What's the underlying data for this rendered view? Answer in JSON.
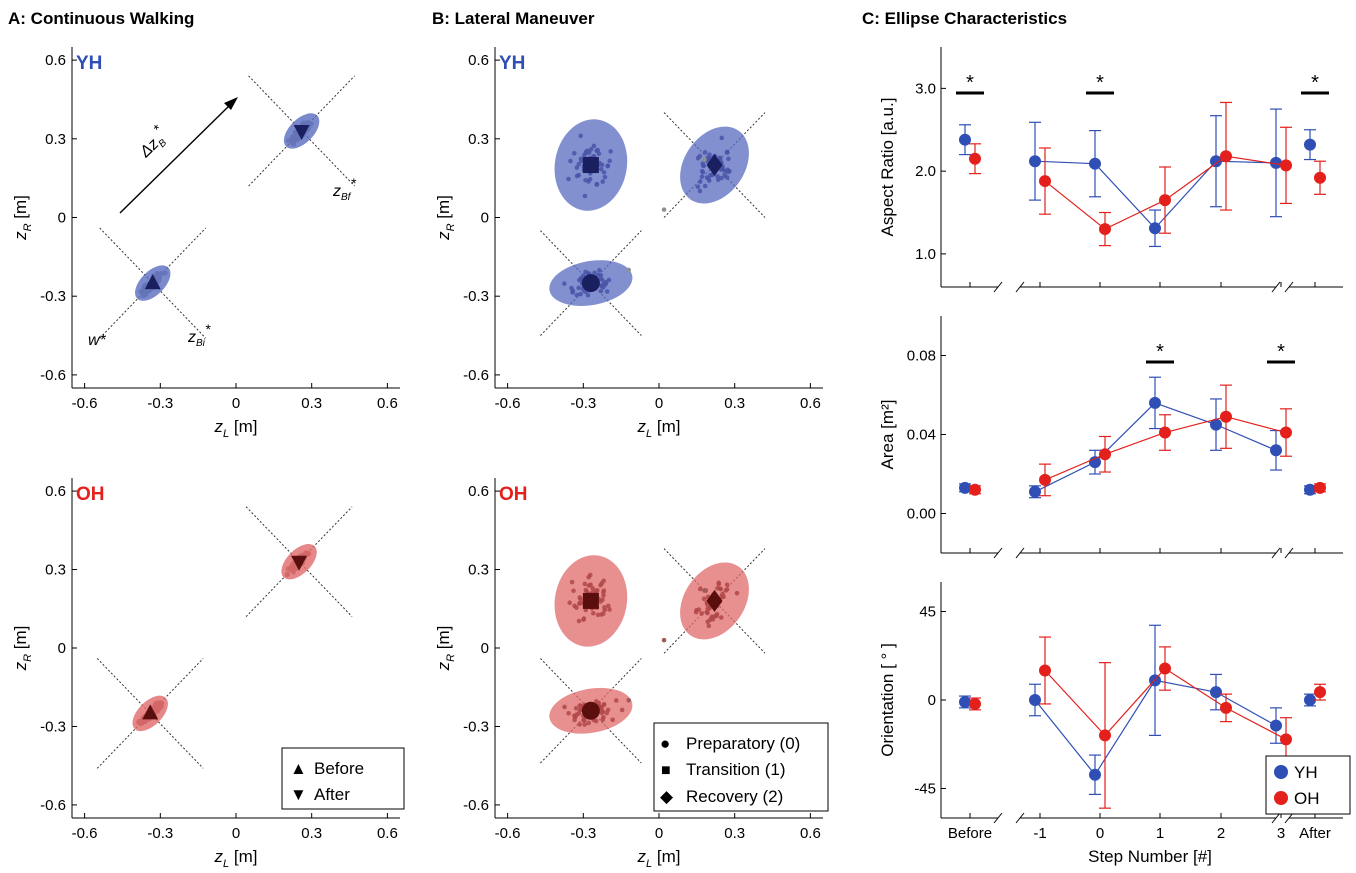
{
  "panels": {
    "a_title": "A: Continuous Walking",
    "b_title": "B: Lateral Maneuver",
    "c_title": "C: Ellipse Characteristics",
    "yh_tag": "YH",
    "oh_tag": "OH"
  },
  "colors": {
    "yh": "#2f4fb5",
    "oh": "#e3201c",
    "yh_fill": "#5a6bc0",
    "oh_fill": "#e06a6a",
    "scatter": "#909090",
    "oh_scatter": "#a05a5a"
  },
  "scatter_axes": {
    "xlabel_main": "z",
    "xlabel_sub": "L",
    "xlabel_unit": " [m]",
    "ylabel_main": "z",
    "ylabel_sub": "R",
    "ylabel_unit": " [m]",
    "ticks": [
      -0.6,
      -0.3,
      0,
      0.3,
      0.6
    ],
    "tick_labels": [
      "-0.6",
      "-0.3",
      "0",
      "0.3",
      "0.6"
    ]
  },
  "annotations": {
    "delta": "Δz",
    "delta_sub": "B",
    "w": "w*",
    "zbi": "z",
    "zbi_sub": "Bi",
    "zbf": "z",
    "zbf_sub": "Bf",
    "star": "*"
  },
  "legend_a": [
    {
      "symbol": "▲",
      "label": "Before"
    },
    {
      "symbol": "▼",
      "label": "After"
    }
  ],
  "legend_b": [
    {
      "symbol": "●",
      "label": "Preparatory (0)"
    },
    {
      "symbol": "■",
      "label": "Transition (1)"
    },
    {
      "symbol": "◆",
      "label": "Recovery (2)"
    }
  ],
  "legend_c": [
    {
      "label": "YH"
    },
    {
      "label": "OH"
    }
  ],
  "chart_data": [
    {
      "type": "scatter",
      "title": "A: Continuous Walking",
      "group": "YH",
      "xlabel": "z_L [m]",
      "ylabel": "z_R [m]",
      "xlim": [
        -0.65,
        0.65
      ],
      "ylim": [
        -0.65,
        0.65
      ],
      "series": [
        {
          "name": "Before",
          "center": [
            -0.33,
            -0.25
          ]
        },
        {
          "name": "After",
          "center": [
            0.26,
            0.33
          ]
        }
      ]
    },
    {
      "type": "scatter",
      "group": "OH",
      "xlabel": "z_L [m]",
      "ylabel": "z_R [m]",
      "xlim": [
        -0.65,
        0.65
      ],
      "ylim": [
        -0.65,
        0.65
      ],
      "series": [
        {
          "name": "Before",
          "center": [
            -0.34,
            -0.25
          ]
        },
        {
          "name": "After",
          "center": [
            0.25,
            0.33
          ]
        }
      ]
    },
    {
      "type": "scatter",
      "title": "B: Lateral Maneuver",
      "group": "YH",
      "xlabel": "z_L [m]",
      "ylabel": "z_R [m]",
      "xlim": [
        -0.65,
        0.65
      ],
      "ylim": [
        -0.65,
        0.65
      ],
      "series": [
        {
          "name": "Preparatory (0)",
          "center": [
            -0.27,
            -0.25
          ]
        },
        {
          "name": "Transition (1)",
          "center": [
            -0.27,
            0.2
          ]
        },
        {
          "name": "Recovery (2)",
          "center": [
            0.22,
            0.2
          ]
        }
      ]
    },
    {
      "type": "scatter",
      "group": "OH",
      "xlabel": "z_L [m]",
      "ylabel": "z_R [m]",
      "xlim": [
        -0.65,
        0.65
      ],
      "ylim": [
        -0.65,
        0.65
      ],
      "series": [
        {
          "name": "Preparatory (0)",
          "center": [
            -0.27,
            -0.24
          ]
        },
        {
          "name": "Transition (1)",
          "center": [
            -0.27,
            0.18
          ]
        },
        {
          "name": "Recovery (2)",
          "center": [
            0.22,
            0.18
          ]
        }
      ]
    },
    {
      "type": "line",
      "ylabel": "Aspect Ratio [a.u.]",
      "categories": [
        "Before",
        "-1",
        "0",
        "1",
        "2",
        "3",
        "After"
      ],
      "ylim": [
        0.6,
        3.5
      ],
      "yticks": [
        "1.0",
        "2.0",
        "3.0"
      ],
      "series": [
        {
          "name": "YH",
          "values": [
            2.38,
            2.12,
            2.09,
            1.31,
            2.12,
            2.1,
            2.32
          ],
          "errors": [
            0.18,
            0.47,
            0.4,
            0.22,
            0.55,
            0.65,
            0.18
          ]
        },
        {
          "name": "OH",
          "values": [
            2.15,
            1.88,
            1.3,
            1.65,
            2.18,
            2.07,
            1.92
          ],
          "errors": [
            0.18,
            0.4,
            0.2,
            0.4,
            0.65,
            0.46,
            0.2
          ]
        }
      ],
      "significance": [
        "Before",
        "0",
        "After"
      ]
    },
    {
      "type": "line",
      "ylabel": "Area [m²]",
      "categories": [
        "Before",
        "-1",
        "0",
        "1",
        "2",
        "3",
        "After"
      ],
      "ylim": [
        -0.02,
        0.1
      ],
      "yticks": [
        "0.00",
        "0.04",
        "0.08"
      ],
      "series": [
        {
          "name": "YH",
          "values": [
            0.013,
            0.011,
            0.026,
            0.056,
            0.045,
            0.032,
            0.012
          ],
          "errors": [
            0.002,
            0.003,
            0.006,
            0.013,
            0.013,
            0.01,
            0.002
          ]
        },
        {
          "name": "OH",
          "values": [
            0.012,
            0.017,
            0.03,
            0.041,
            0.049,
            0.041,
            0.013
          ],
          "errors": [
            0.002,
            0.008,
            0.009,
            0.009,
            0.016,
            0.012,
            0.002
          ]
        }
      ],
      "significance": [
        "1",
        "3"
      ]
    },
    {
      "type": "line",
      "ylabel": "Orientation [ ° ]",
      "xlabel": "Step Number [#]",
      "categories": [
        "Before",
        "-1",
        "0",
        "1",
        "2",
        "3",
        "After"
      ],
      "ylim": [
        -60,
        60
      ],
      "yticks": [
        "-45",
        "0",
        "45"
      ],
      "series": [
        {
          "name": "YH",
          "values": [
            -1,
            0,
            -38,
            10,
            4,
            -13,
            0
          ],
          "errors": [
            3,
            8,
            10,
            28,
            9,
            9,
            3
          ]
        },
        {
          "name": "OH",
          "values": [
            -2,
            15,
            -18,
            16,
            -4,
            -20,
            4
          ],
          "errors": [
            3,
            17,
            37,
            11,
            7,
            11,
            4
          ]
        }
      ]
    }
  ]
}
